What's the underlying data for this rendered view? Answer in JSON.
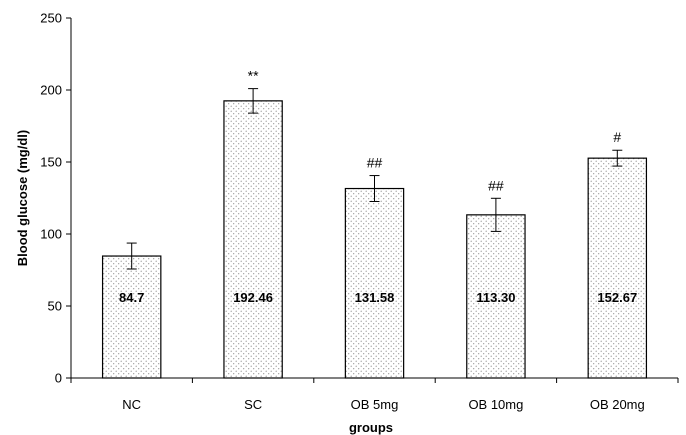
{
  "chart_data": {
    "type": "bar",
    "title": "",
    "xlabel": "groups",
    "ylabel": "Blood glucose  (mg/dl)",
    "ylim": [
      0,
      250
    ],
    "yticks": [
      0,
      50,
      100,
      150,
      200,
      250
    ],
    "grid": false,
    "categories": [
      "NC",
      "SC",
      "OB 5mg",
      "OB 10mg",
      "OB 20mg"
    ],
    "values": [
      84.7,
      192.46,
      131.58,
      113.3,
      152.67
    ],
    "value_labels": [
      "84.7",
      "192.46",
      "131.58",
      "113.30",
      "152.67"
    ],
    "error": [
      9,
      8.5,
      9,
      11.5,
      5.5
    ],
    "significance": [
      "",
      "**",
      "##",
      "##",
      "#"
    ],
    "bar_fill": "dotted light gray",
    "colors": {
      "bar_stroke": "#000000",
      "dot": "#8c8c8c",
      "background": "#ffffff"
    }
  }
}
